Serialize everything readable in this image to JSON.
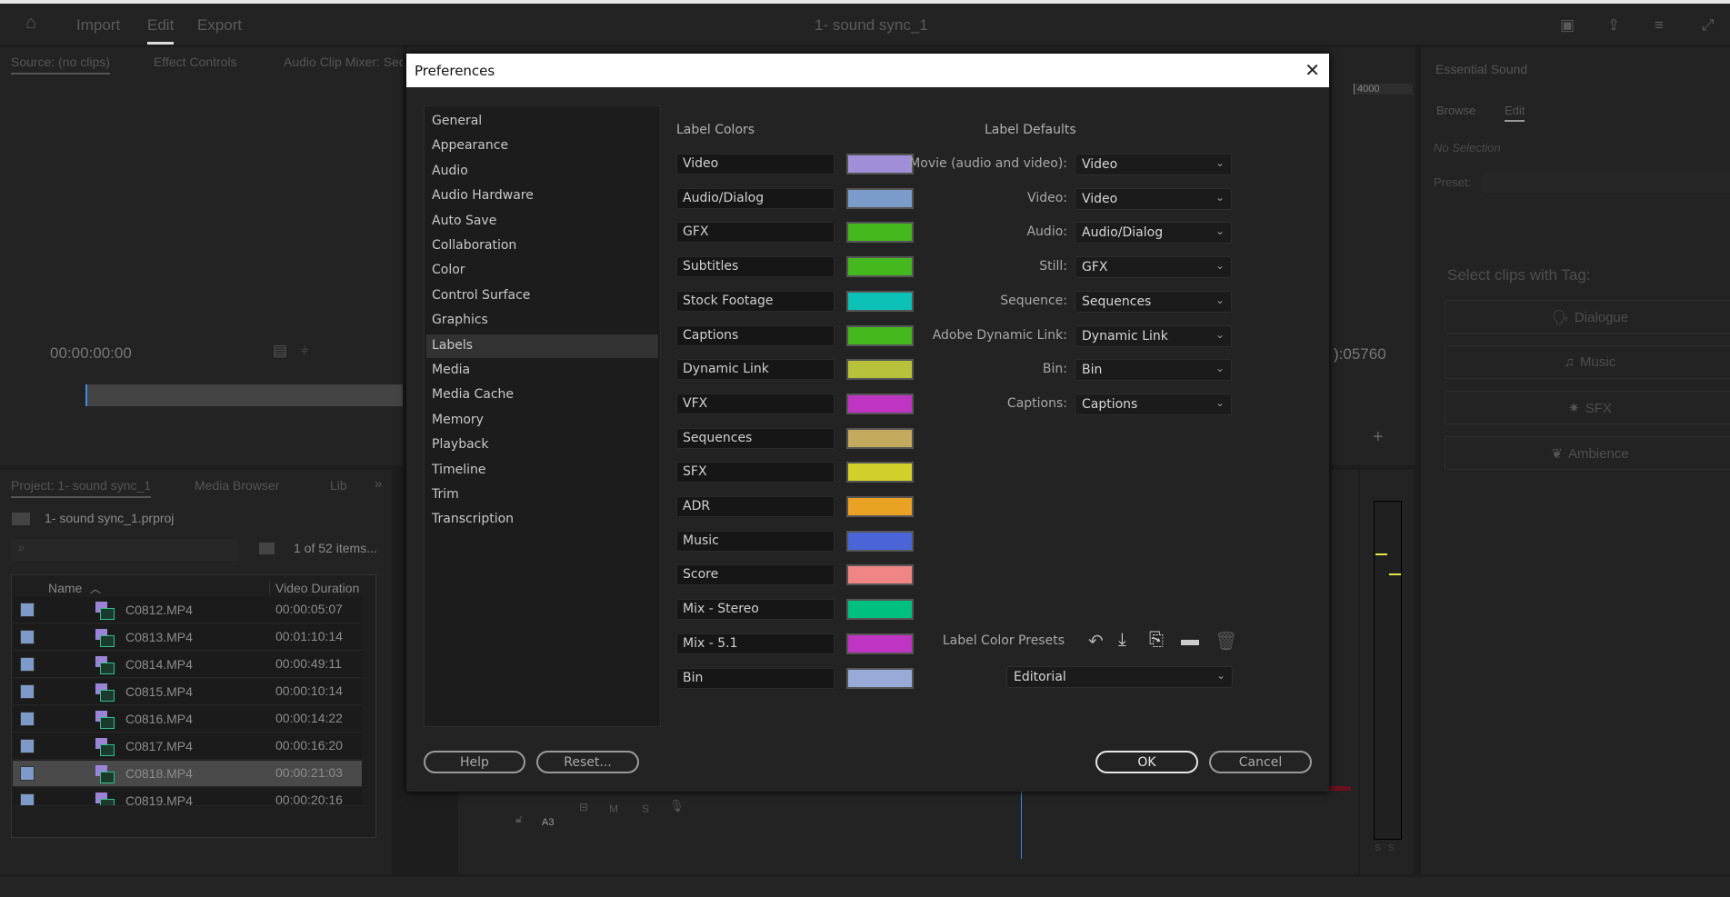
{
  "topbar": {
    "tabs": [
      "Import",
      "Edit",
      "Export"
    ],
    "active_tab": "Edit",
    "title": "1- sound sync_1"
  },
  "source_panel": {
    "tabs": [
      "Source: (no clips)",
      "Effect Controls",
      "Audio Clip Mixer: Seq"
    ],
    "timecode": "00:00:00:00"
  },
  "program_panel": {
    "ruler_label": "4000",
    "timecode": "):05760"
  },
  "essential_sound": {
    "title": "Essential Sound",
    "tabs": [
      "Browse",
      "Edit"
    ],
    "active_tab": "Edit",
    "no_selection": "No Selection",
    "preset_label": "Preset:",
    "select_tag_label": "Select clips with Tag:",
    "tags": [
      {
        "label": "Dialogue",
        "icon": "dialogue-icon"
      },
      {
        "label": "Music",
        "icon": "music-icon"
      },
      {
        "label": "SFX",
        "icon": "sfx-icon"
      },
      {
        "label": "Ambience",
        "icon": "ambience-icon"
      }
    ]
  },
  "project_panel": {
    "tabs": [
      "Project: 1- sound sync_1",
      "Media Browser",
      "Lib"
    ],
    "project_file": "1- sound sync_1.prproj",
    "item_count": "1 of 52 items...",
    "columns": [
      "Name",
      "Video Duration"
    ],
    "rows": [
      {
        "name": "C0812.MP4",
        "duration": "00:00:05:07"
      },
      {
        "name": "C0813.MP4",
        "duration": "00:01:10:14"
      },
      {
        "name": "C0814.MP4",
        "duration": "00:00:49:11"
      },
      {
        "name": "C0815.MP4",
        "duration": "00:00:10:14"
      },
      {
        "name": "C0816.MP4",
        "duration": "00:00:14:22"
      },
      {
        "name": "C0817.MP4",
        "duration": "00:00:16:20"
      },
      {
        "name": "C0818.MP4",
        "duration": "00:00:21:03",
        "selected": true
      },
      {
        "name": "C0819.MP4",
        "duration": "00:00:20:16"
      }
    ],
    "label_color": "#7d9ac9"
  },
  "timeline": {
    "track": "A3",
    "track_buttons": [
      "M",
      "S"
    ]
  },
  "meter": {
    "solo_buttons": [
      "S",
      "S"
    ]
  },
  "dialog": {
    "title": "Preferences",
    "nav": [
      "General",
      "Appearance",
      "Audio",
      "Audio Hardware",
      "Auto Save",
      "Collaboration",
      "Color",
      "Control Surface",
      "Graphics",
      "Labels",
      "Media",
      "Media Cache",
      "Memory",
      "Playback",
      "Timeline",
      "Trim",
      "Transcription"
    ],
    "selected_nav": "Labels",
    "label_colors_header": "Label Colors",
    "label_colors": [
      {
        "name": "Video",
        "color": "#a08fd8"
      },
      {
        "name": "Audio/Dialog",
        "color": "#7b9bca"
      },
      {
        "name": "GFX",
        "color": "#45b81d"
      },
      {
        "name": "Subtitles",
        "color": "#45b81d"
      },
      {
        "name": "Stock Footage",
        "color": "#0cc2b6"
      },
      {
        "name": "Captions",
        "color": "#45b81d"
      },
      {
        "name": "Dynamic Link",
        "color": "#b7c13a"
      },
      {
        "name": "VFX",
        "color": "#c034c4"
      },
      {
        "name": "Sequences",
        "color": "#c4aa5c"
      },
      {
        "name": "SFX",
        "color": "#d1d02a"
      },
      {
        "name": "ADR",
        "color": "#e9a224"
      },
      {
        "name": "Music",
        "color": "#4b65d8"
      },
      {
        "name": "Score",
        "color": "#ef8584"
      },
      {
        "name": "Mix - Stereo",
        "color": "#00c07f"
      },
      {
        "name": "Mix - 5.1",
        "color": "#c034c4"
      },
      {
        "name": "Bin",
        "color": "#98abd8"
      }
    ],
    "label_defaults_header": "Label Defaults",
    "label_defaults": [
      {
        "label": "Movie (audio and video):",
        "value": "Video"
      },
      {
        "label": "Video:",
        "value": "Video"
      },
      {
        "label": "Audio:",
        "value": "Audio/Dialog"
      },
      {
        "label": "Still:",
        "value": "GFX"
      },
      {
        "label": "Sequence:",
        "value": "Sequences"
      },
      {
        "label": "Adobe Dynamic Link:",
        "value": "Dynamic Link"
      },
      {
        "label": "Bin:",
        "value": "Bin"
      },
      {
        "label": "Captions:",
        "value": "Captions"
      }
    ],
    "presets_label": "Label Color Presets",
    "preset_value": "Editorial",
    "buttons": {
      "help": "Help",
      "reset": "Reset...",
      "ok": "OK",
      "cancel": "Cancel"
    }
  }
}
